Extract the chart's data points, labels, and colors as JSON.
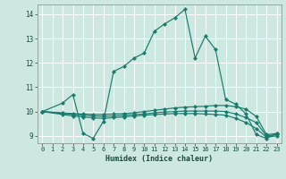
{
  "xlabel": "Humidex (Indice chaleur)",
  "xlim": [
    -0.5,
    23.5
  ],
  "ylim": [
    8.7,
    14.4
  ],
  "yticks": [
    9,
    10,
    11,
    12,
    13,
    14
  ],
  "xticks": [
    0,
    1,
    2,
    3,
    4,
    5,
    6,
    7,
    8,
    9,
    10,
    11,
    12,
    13,
    14,
    15,
    16,
    17,
    18,
    19,
    20,
    21,
    22,
    23
  ],
  "bg_color": "#cce8e0",
  "line_color": "#1a7a6e",
  "grid_color": "#ffffff",
  "lines": [
    {
      "x": [
        0,
        2,
        3,
        4,
        5,
        6,
        7,
        8,
        9,
        10,
        11,
        12,
        13,
        14,
        15,
        16,
        17,
        18,
        19,
        20,
        21,
        22,
        23
      ],
      "y": [
        10.0,
        10.35,
        10.7,
        9.1,
        8.9,
        9.6,
        11.65,
        11.85,
        12.2,
        12.4,
        13.3,
        13.6,
        13.85,
        14.2,
        12.2,
        13.1,
        12.55,
        10.5,
        10.3,
        9.9,
        9.05,
        8.9,
        9.1
      ]
    },
    {
      "x": [
        0,
        2,
        3,
        4,
        5,
        6,
        7,
        8,
        9,
        10,
        11,
        12,
        13,
        14,
        15,
        16,
        17,
        18,
        19,
        20,
        21,
        22,
        23
      ],
      "y": [
        10.0,
        9.95,
        9.92,
        9.9,
        9.88,
        9.88,
        9.9,
        9.92,
        9.95,
        10.0,
        10.05,
        10.1,
        10.15,
        10.18,
        10.2,
        10.22,
        10.25,
        10.25,
        10.2,
        10.1,
        9.8,
        9.05,
        9.1
      ]
    },
    {
      "x": [
        0,
        2,
        3,
        4,
        5,
        6,
        7,
        8,
        9,
        10,
        11,
        12,
        13,
        14,
        15,
        16,
        17,
        18,
        19,
        20,
        21,
        22,
        23
      ],
      "y": [
        10.0,
        9.92,
        9.88,
        9.85,
        9.82,
        9.8,
        9.82,
        9.85,
        9.88,
        9.9,
        9.95,
        9.98,
        10.0,
        10.02,
        10.02,
        10.02,
        10.02,
        10.0,
        9.9,
        9.75,
        9.55,
        9.0,
        9.05
      ]
    },
    {
      "x": [
        0,
        2,
        3,
        4,
        5,
        6,
        7,
        8,
        9,
        10,
        11,
        12,
        13,
        14,
        15,
        16,
        17,
        18,
        19,
        20,
        21,
        22,
        23
      ],
      "y": [
        10.0,
        9.88,
        9.82,
        9.78,
        9.74,
        9.72,
        9.75,
        9.78,
        9.82,
        9.85,
        9.88,
        9.9,
        9.92,
        9.92,
        9.92,
        9.9,
        9.88,
        9.85,
        9.72,
        9.55,
        9.3,
        8.95,
        9.0
      ]
    }
  ]
}
